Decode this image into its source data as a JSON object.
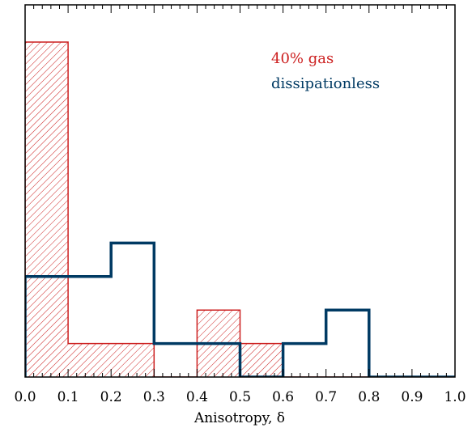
{
  "chart_data": {
    "type": "histogram",
    "xlabel": "Anisotropy, δ",
    "ylabel": "",
    "title": "",
    "xlim": [
      0.0,
      1.0
    ],
    "ylim": [
      0,
      1.0
    ],
    "bin_edges": [
      0.0,
      0.1,
      0.2,
      0.3,
      0.4,
      0.5,
      0.6,
      0.7,
      0.8,
      0.9,
      1.0
    ],
    "x_ticks": [
      "0.0",
      "0.1",
      "0.2",
      "0.3",
      "0.4",
      "0.5",
      "0.6",
      "0.7",
      "0.8",
      "0.9",
      "1.0"
    ],
    "y_axis_tick_labels": "none",
    "legend_position": "top-right",
    "series": [
      {
        "name": "40% gas",
        "color": "#cc1f1f",
        "style": "hatched",
        "values": [
          0.9,
          0.09,
          0.09,
          0.0,
          0.18,
          0.09,
          0.0,
          0.0,
          0.0,
          0.0
        ]
      },
      {
        "name": "dissipationless",
        "color": "#003a63",
        "style": "step",
        "values": [
          0.27,
          0.27,
          0.36,
          0.09,
          0.09,
          0.0,
          0.09,
          0.18,
          0.0,
          0.0
        ]
      }
    ]
  }
}
